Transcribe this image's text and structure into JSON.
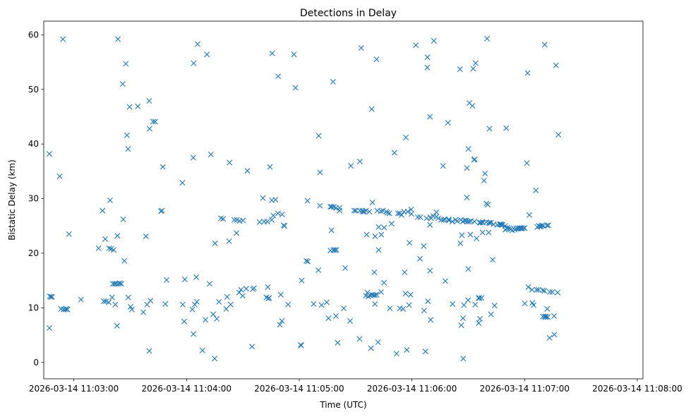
{
  "chart_data": {
    "type": "scatter",
    "title": "Detections in Delay",
    "xlabel": "Time (UTC)",
    "ylabel": "Bistatic Delay (km)",
    "marker": "x",
    "color": "#1f77b4",
    "x_unit": "seconds after 2026-03-14 11:03:00 UTC",
    "xlim": [
      -16,
      303
    ],
    "ylim": [
      -3,
      62.5
    ],
    "x_ticks": [
      {
        "value": 0,
        "label": "2026-03-14 11:03:00"
      },
      {
        "value": 60,
        "label": "2026-03-14 11:04:00"
      },
      {
        "value": 120,
        "label": "2026-03-14 11:05:00"
      },
      {
        "value": 180,
        "label": "2026-03-14 11:06:00"
      },
      {
        "value": 240,
        "label": "2026-03-14 11:07:00"
      },
      {
        "value": 300,
        "label": "2026-03-14 11:08:00"
      }
    ],
    "y_ticks": [
      {
        "value": 0,
        "label": "0"
      },
      {
        "value": 10,
        "label": "10"
      },
      {
        "value": 20,
        "label": "20"
      },
      {
        "value": 30,
        "label": "30"
      },
      {
        "value": 40,
        "label": "40"
      },
      {
        "value": 50,
        "label": "50"
      },
      {
        "value": 60,
        "label": "60"
      }
    ],
    "points": [
      [
        -13.0,
        38.2
      ],
      [
        -13.0,
        6.3
      ],
      [
        -12.8,
        12.1
      ],
      [
        -12.2,
        12.0
      ],
      [
        -11.6,
        12.0
      ],
      [
        -7.5,
        34.1
      ],
      [
        -6.8,
        9.8
      ],
      [
        -5.8,
        59.2
      ],
      [
        -5.5,
        9.7
      ],
      [
        -4.5,
        9.7
      ],
      [
        -3.4,
        9.7
      ],
      [
        -2.6,
        23.5
      ],
      [
        3.8,
        11.5
      ],
      [
        13.2,
        20.9
      ],
      [
        15.3,
        27.8
      ],
      [
        16.0,
        11.2
      ],
      [
        16.7,
        22.6
      ],
      [
        17.1,
        11.2
      ],
      [
        18.6,
        11.0
      ],
      [
        18.8,
        20.9
      ],
      [
        19.3,
        29.7
      ],
      [
        19.8,
        20.8
      ],
      [
        20.4,
        11.9
      ],
      [
        20.8,
        14.4
      ],
      [
        21.2,
        20.6
      ],
      [
        21.7,
        14.4
      ],
      [
        22.1,
        10.6
      ],
      [
        22.5,
        14.4
      ],
      [
        23.0,
        6.7
      ],
      [
        23.2,
        23.2
      ],
      [
        23.5,
        59.2
      ],
      [
        23.7,
        14.4
      ],
      [
        24.5,
        14.5
      ],
      [
        25.3,
        14.4
      ],
      [
        26.0,
        51.0
      ],
      [
        26.3,
        26.2
      ],
      [
        26.9,
        18.6
      ],
      [
        27.7,
        54.7
      ],
      [
        28.3,
        41.6
      ],
      [
        28.9,
        39.1
      ],
      [
        29.0,
        11.9
      ],
      [
        29.7,
        46.8
      ],
      [
        30.2,
        10.2
      ],
      [
        30.9,
        9.7
      ],
      [
        34.1,
        46.9
      ],
      [
        37.0,
        9.2
      ],
      [
        38.4,
        23.1
      ],
      [
        39.0,
        10.6
      ],
      [
        40.1,
        47.9
      ],
      [
        40.2,
        2.1
      ],
      [
        40.3,
        42.8
      ],
      [
        40.8,
        11.3
      ],
      [
        43.3,
        44.1
      ],
      [
        46.4,
        27.7
      ],
      [
        46.9,
        27.8
      ],
      [
        47.4,
        35.8
      ],
      [
        48.7,
        10.7
      ],
      [
        49.4,
        15.1
      ],
      [
        57.8,
        32.9
      ],
      [
        58.0,
        10.6
      ],
      [
        58.8,
        7.5
      ],
      [
        59.1,
        15.2
      ],
      [
        63.1,
        9.7
      ],
      [
        63.6,
        37.5
      ],
      [
        63.7,
        5.2
      ],
      [
        63.8,
        54.8
      ],
      [
        64.4,
        10.6
      ],
      [
        65.2,
        15.6
      ],
      [
        65.5,
        11.1
      ],
      [
        65.9,
        58.3
      ],
      [
        68.5,
        2.2
      ],
      [
        70.1,
        7.8
      ],
      [
        70.9,
        56.4
      ],
      [
        72.3,
        14.4
      ],
      [
        73.0,
        38.1
      ],
      [
        74.2,
        8.8
      ],
      [
        75.0,
        0.7
      ],
      [
        75.2,
        21.8
      ],
      [
        76.1,
        8.0
      ],
      [
        77.3,
        11.1
      ],
      [
        78.3,
        26.4
      ],
      [
        79.5,
        26.3
      ],
      [
        81.1,
        9.8
      ],
      [
        81.6,
        12.0
      ],
      [
        82.7,
        22.2
      ],
      [
        82.9,
        36.6
      ],
      [
        83.5,
        10.6
      ],
      [
        85.4,
        26.1
      ],
      [
        86.6,
        23.7
      ],
      [
        86.8,
        26.1
      ],
      [
        88.0,
        12.8
      ],
      [
        88.3,
        25.9
      ],
      [
        89.0,
        13.3
      ],
      [
        89.9,
        12.2
      ],
      [
        90.1,
        26.0
      ],
      [
        91.8,
        13.5
      ],
      [
        92.4,
        35.1
      ],
      [
        94.9,
        2.9
      ],
      [
        95.9,
        13.6
      ],
      [
        98.9,
        25.7
      ],
      [
        100.7,
        30.1
      ],
      [
        101.3,
        25.8
      ],
      [
        102.5,
        11.9
      ],
      [
        103.0,
        25.8
      ],
      [
        103.3,
        13.8
      ],
      [
        103.5,
        11.7
      ],
      [
        104.0,
        11.8
      ],
      [
        104.4,
        35.8
      ],
      [
        105.4,
        29.7
      ],
      [
        105.4,
        26.1
      ],
      [
        105.6,
        56.6
      ],
      [
        106.2,
        26.9
      ],
      [
        107.4,
        29.8
      ],
      [
        108.7,
        27.3
      ],
      [
        108.8,
        52.4
      ],
      [
        109.7,
        6.9
      ],
      [
        110.2,
        12.4
      ],
      [
        110.8,
        7.6
      ],
      [
        110.9,
        27.1
      ],
      [
        111.7,
        25.1
      ],
      [
        112.2,
        25.0
      ],
      [
        114.1,
        10.6
      ],
      [
        117.2,
        56.4
      ],
      [
        118.0,
        50.3
      ],
      [
        120.8,
        3.2
      ],
      [
        121.0,
        3.1
      ],
      [
        121.3,
        15.0
      ],
      [
        123.8,
        18.6
      ],
      [
        124.4,
        29.6
      ],
      [
        124.6,
        18.5
      ],
      [
        127.7,
        10.7
      ],
      [
        130.2,
        16.9
      ],
      [
        130.4,
        41.5
      ],
      [
        131.0,
        28.7
      ],
      [
        131.1,
        34.8
      ],
      [
        131.9,
        10.5
      ],
      [
        134.7,
        11.0
      ],
      [
        135.6,
        8.1
      ],
      [
        136.6,
        28.5
      ],
      [
        136.6,
        20.5
      ],
      [
        137.2,
        24.2
      ],
      [
        137.3,
        28.5
      ],
      [
        138.0,
        51.4
      ],
      [
        138.2,
        20.6
      ],
      [
        138.4,
        28.5
      ],
      [
        139.0,
        20.6
      ],
      [
        139.6,
        8.5
      ],
      [
        139.6,
        28.3
      ],
      [
        139.8,
        20.6
      ],
      [
        140.5,
        3.6
      ],
      [
        141.5,
        28.3
      ],
      [
        141.5,
        27.8
      ],
      [
        143.7,
        9.9
      ],
      [
        144.5,
        17.3
      ],
      [
        147.1,
        7.6
      ],
      [
        147.5,
        36.0
      ],
      [
        149.3,
        27.8
      ],
      [
        152.1,
        4.3
      ],
      [
        152.3,
        36.8
      ],
      [
        152.3,
        27.8
      ],
      [
        153.0,
        57.6
      ],
      [
        153.6,
        27.8
      ],
      [
        154.0,
        27.6
      ],
      [
        154.7,
        27.6
      ],
      [
        155.5,
        12.2
      ],
      [
        155.6,
        27.8
      ],
      [
        155.9,
        23.4
      ],
      [
        156.3,
        12.8
      ],
      [
        156.8,
        12.1
      ],
      [
        157.4,
        27.6
      ],
      [
        157.8,
        12.3
      ],
      [
        158.2,
        2.6
      ],
      [
        158.6,
        46.4
      ],
      [
        158.7,
        12.4
      ],
      [
        159.0,
        29.3
      ],
      [
        159.6,
        12.3
      ],
      [
        160.0,
        16.5
      ],
      [
        160.3,
        10.7
      ],
      [
        160.4,
        12.3
      ],
      [
        160.4,
        23.1
      ],
      [
        161.2,
        12.4
      ],
      [
        161.2,
        55.5
      ],
      [
        161.6,
        27.8
      ],
      [
        162.0,
        3.7
      ],
      [
        162.3,
        20.6
      ],
      [
        162.3,
        24.8
      ],
      [
        163.5,
        27.7
      ],
      [
        163.6,
        12.9
      ],
      [
        163.7,
        23.4
      ],
      [
        164.6,
        27.8
      ],
      [
        165.2,
        24.7
      ],
      [
        165.2,
        14.6
      ],
      [
        166.4,
        27.6
      ],
      [
        168.0,
        27.3
      ],
      [
        168.3,
        9.9
      ],
      [
        169.2,
        25.4
      ],
      [
        170.7,
        38.4
      ],
      [
        171.8,
        1.6
      ],
      [
        172.6,
        27.3
      ],
      [
        173.5,
        27.3
      ],
      [
        173.6,
        9.9
      ],
      [
        174.5,
        27.0
      ],
      [
        175.3,
        9.8
      ],
      [
        175.8,
        27.6
      ],
      [
        176.1,
        16.5
      ],
      [
        176.6,
        12.6
      ],
      [
        176.8,
        41.2
      ],
      [
        177.3,
        2.3
      ],
      [
        177.7,
        27.6
      ],
      [
        178.5,
        10.5
      ],
      [
        178.7,
        21.9
      ],
      [
        179.3,
        12.4
      ],
      [
        179.6,
        28.0
      ],
      [
        179.8,
        27.2
      ],
      [
        182.1,
        58.1
      ],
      [
        183.1,
        26.6
      ],
      [
        184.3,
        19.0
      ],
      [
        184.5,
        26.6
      ],
      [
        186.3,
        21.3
      ],
      [
        186.5,
        9.5
      ],
      [
        187.2,
        2.0
      ],
      [
        187.8,
        26.4
      ],
      [
        188.2,
        54.0
      ],
      [
        188.3,
        55.9
      ],
      [
        188.5,
        11.2
      ],
      [
        189.6,
        45.0
      ],
      [
        189.6,
        16.8
      ],
      [
        189.6,
        25.2
      ],
      [
        189.8,
        26.6
      ],
      [
        190.0,
        7.8
      ],
      [
        190.3,
        26.4
      ],
      [
        191.4,
        26.8
      ],
      [
        191.7,
        58.9
      ],
      [
        193.0,
        27.5
      ],
      [
        193.1,
        26.7
      ],
      [
        194.0,
        26.4
      ],
      [
        195.6,
        26.1
      ],
      [
        196.6,
        36.0
      ],
      [
        196.8,
        26.1
      ],
      [
        197.6,
        26.2
      ],
      [
        197.8,
        14.9
      ],
      [
        199.2,
        43.9
      ],
      [
        199.6,
        26.2
      ],
      [
        199.7,
        26.0
      ],
      [
        201.5,
        25.8
      ],
      [
        201.6,
        10.7
      ],
      [
        203.2,
        26.1
      ],
      [
        204.1,
        25.9
      ],
      [
        205.6,
        53.7
      ],
      [
        205.8,
        21.8
      ],
      [
        206.0,
        26.1
      ],
      [
        206.3,
        6.8
      ],
      [
        206.6,
        23.3
      ],
      [
        207.1,
        25.8
      ],
      [
        207.2,
        8.1
      ],
      [
        207.3,
        0.7
      ],
      [
        207.7,
        10.5
      ],
      [
        208.0,
        26.0
      ],
      [
        208.8,
        26.0
      ],
      [
        209.3,
        30.2
      ],
      [
        209.4,
        25.8
      ],
      [
        209.9,
        11.4
      ],
      [
        210.0,
        17.1
      ],
      [
        210.1,
        39.1
      ],
      [
        210.4,
        25.8
      ],
      [
        210.6,
        47.5
      ],
      [
        211.1,
        23.4
      ],
      [
        211.4,
        25.9
      ],
      [
        212.2,
        47.0
      ],
      [
        212.6,
        53.8
      ],
      [
        213.1,
        37.1
      ],
      [
        213.3,
        25.8
      ],
      [
        213.4,
        37.2
      ],
      [
        213.7,
        10.6
      ],
      [
        213.9,
        54.8
      ],
      [
        214.4,
        22.7
      ],
      [
        215.5,
        11.8
      ],
      [
        216.0,
        25.6
      ],
      [
        216.0,
        11.8
      ],
      [
        216.6,
        25.6
      ],
      [
        217.1,
        11.8
      ],
      [
        217.6,
        23.8
      ],
      [
        217.6,
        25.7
      ],
      [
        217.8,
        25.6
      ],
      [
        218.4,
        33.3
      ],
      [
        219.6,
        25.7
      ],
      [
        219.7,
        29.1
      ],
      [
        220.4,
        28.9
      ],
      [
        220.9,
        23.8
      ],
      [
        221.0,
        25.6
      ],
      [
        221.3,
        42.8
      ],
      [
        221.4,
        25.5
      ],
      [
        222.1,
        8.8
      ],
      [
        222.1,
        25.6
      ],
      [
        223.0,
        18.8
      ],
      [
        223.5,
        25.3
      ],
      [
        224.0,
        10.4
      ],
      [
        225.5,
        25.2
      ],
      [
        226.7,
        25.3
      ],
      [
        227.3,
        25.3
      ],
      [
        227.7,
        25.2
      ],
      [
        228.3,
        25.2
      ],
      [
        229.6,
        25.0
      ],
      [
        229.7,
        24.3
      ],
      [
        230.6,
        24.5
      ],
      [
        230.9,
        24.7
      ],
      [
        232.0,
        24.6
      ],
      [
        232.6,
        24.4
      ],
      [
        233.4,
        24.2
      ],
      [
        234.8,
        24.3
      ],
      [
        235.5,
        24.5
      ],
      [
        236.2,
        24.6
      ],
      [
        236.6,
        24.5
      ],
      [
        237.2,
        24.6
      ],
      [
        238.0,
        24.6
      ],
      [
        238.3,
        24.5
      ],
      [
        238.7,
        24.6
      ],
      [
        239.7,
        24.6
      ],
      [
        240.0,
        24.6
      ],
      [
        241.2,
        36.5
      ],
      [
        241.6,
        53.0
      ],
      [
        242.0,
        13.8
      ],
      [
        242.5,
        27.0
      ],
      [
        243.9,
        13.3
      ],
      [
        244.1,
        10.9
      ],
      [
        244.8,
        10.5
      ],
      [
        246.0,
        31.5
      ],
      [
        246.4,
        13.3
      ],
      [
        246.7,
        24.8
      ],
      [
        247.4,
        13.3
      ],
      [
        247.5,
        25.0
      ],
      [
        248.1,
        24.9
      ],
      [
        248.8,
        24.9
      ],
      [
        249.2,
        25.1
      ],
      [
        249.7,
        8.4
      ],
      [
        249.7,
        13.2
      ],
      [
        250.1,
        25.0
      ],
      [
        250.5,
        13.1
      ],
      [
        250.7,
        8.4
      ],
      [
        250.7,
        58.2
      ],
      [
        251.1,
        8.3
      ],
      [
        251.5,
        8.4
      ],
      [
        251.9,
        25.1
      ],
      [
        252.0,
        9.8
      ],
      [
        252.3,
        8.3
      ],
      [
        252.6,
        25.1
      ],
      [
        253.3,
        4.5
      ],
      [
        253.4,
        12.9
      ],
      [
        254.7,
        12.9
      ],
      [
        255.7,
        8.5
      ],
      [
        255.8,
        5.1
      ],
      [
        256.7,
        54.4
      ],
      [
        257.6,
        12.8
      ],
      [
        258.0,
        41.7
      ],
      [
        -3.9,
        9.8
      ],
      [
        42.2,
        44.1
      ],
      [
        95.3,
        13.4
      ],
      [
        150.2,
        27.8
      ],
      [
        167.0,
        27.4
      ],
      [
        209.3,
        35.6
      ],
      [
        218.9,
        34.6
      ],
      [
        230.2,
        42.9
      ],
      [
        215.6,
        7.2
      ],
      [
        216.2,
        8.0
      ],
      [
        220.0,
        59.3
      ],
      [
        240.1,
        10.8
      ]
    ]
  }
}
